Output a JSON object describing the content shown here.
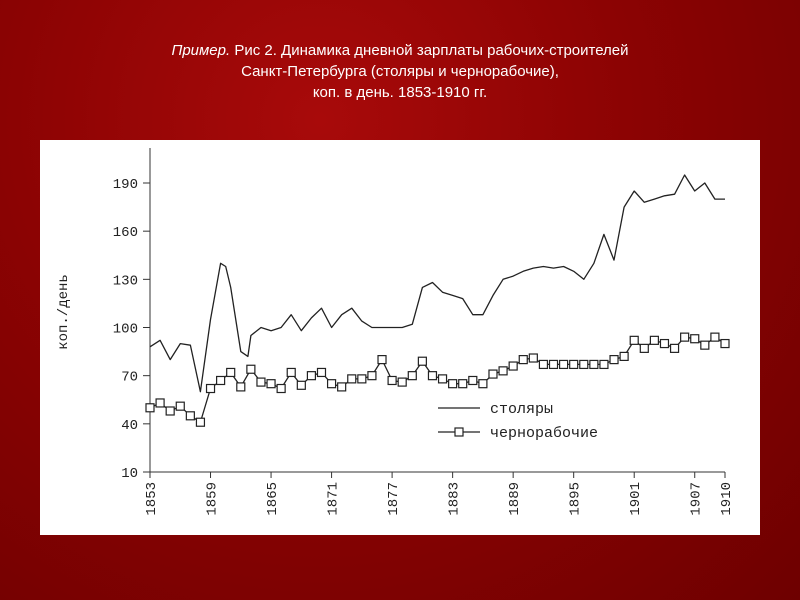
{
  "caption": {
    "line1_italic": "Пример.",
    "line1_rest": " Рис 2. Динамика дневной зарплаты рабочих-строителей",
    "line2": "Санкт-Петербурга (столяры и чернорабочие),",
    "line3": "коп. в день. 1853-1910 гг."
  },
  "chart_data": {
    "type": "line",
    "title": "",
    "xlabel": "",
    "ylabel": "коп./день",
    "xlim": [
      1853,
      1910
    ],
    "ylim": [
      10,
      200
    ],
    "yticks": [
      10,
      40,
      70,
      100,
      130,
      160,
      190
    ],
    "xticks": [
      "1853",
      "1859",
      "1865",
      "1871",
      "1877",
      "1883",
      "1889",
      "1895",
      "1901",
      "1907",
      "1910"
    ],
    "grid": false,
    "legend_position": "bottom-right",
    "series": [
      {
        "name": "столяры",
        "marker": "none",
        "color": "#222222",
        "x": [
          1853,
          1854,
          1855,
          1856,
          1857,
          1858,
          1859,
          1860,
          1860.5,
          1861,
          1862,
          1862.7,
          1863,
          1864,
          1865,
          1866,
          1867,
          1868,
          1869,
          1870,
          1871,
          1872,
          1873,
          1874,
          1875,
          1876,
          1877,
          1878,
          1879,
          1880,
          1881,
          1882,
          1883,
          1884,
          1885,
          1886,
          1887,
          1888,
          1889,
          1890,
          1891,
          1892,
          1893,
          1894,
          1895,
          1896,
          1897,
          1898,
          1899,
          1900,
          1901,
          1902,
          1903,
          1904,
          1905,
          1906,
          1907,
          1908,
          1909,
          1910
        ],
        "values": [
          88,
          92,
          80,
          90,
          89,
          60,
          105,
          140,
          138,
          125,
          85,
          82,
          95,
          100,
          98,
          100,
          108,
          98,
          106,
          112,
          100,
          108,
          112,
          104,
          100,
          100,
          100,
          100,
          102,
          125,
          128,
          122,
          120,
          118,
          108,
          108,
          120,
          130,
          132,
          135,
          137,
          138,
          137,
          138,
          135,
          130,
          140,
          158,
          142,
          175,
          185,
          178,
          180,
          182,
          183,
          195,
          185,
          190,
          180,
          180
        ]
      },
      {
        "name": "чернорабочие",
        "marker": "square",
        "color": "#222222",
        "x": [
          1853,
          1854,
          1855,
          1856,
          1857,
          1858,
          1859,
          1860,
          1861,
          1862,
          1863,
          1864,
          1865,
          1866,
          1867,
          1868,
          1869,
          1870,
          1871,
          1872,
          1873,
          1874,
          1875,
          1876,
          1877,
          1878,
          1879,
          1880,
          1881,
          1882,
          1883,
          1884,
          1885,
          1886,
          1887,
          1888,
          1889,
          1890,
          1891,
          1892,
          1893,
          1894,
          1895,
          1896,
          1897,
          1898,
          1899,
          1900,
          1901,
          1902,
          1903,
          1904,
          1905,
          1906,
          1907,
          1908,
          1909,
          1910
        ],
        "values": [
          50,
          53,
          48,
          51,
          45,
          41,
          62,
          67,
          72,
          63,
          74,
          66,
          65,
          62,
          72,
          64,
          70,
          72,
          65,
          63,
          68,
          68,
          70,
          80,
          67,
          66,
          70,
          79,
          70,
          68,
          65,
          65,
          67,
          65,
          71,
          73,
          76,
          80,
          81,
          77,
          77,
          77,
          77,
          77,
          77,
          77,
          80,
          82,
          92,
          87,
          92,
          90,
          87,
          94,
          93,
          89,
          94,
          90
        ]
      }
    ]
  }
}
